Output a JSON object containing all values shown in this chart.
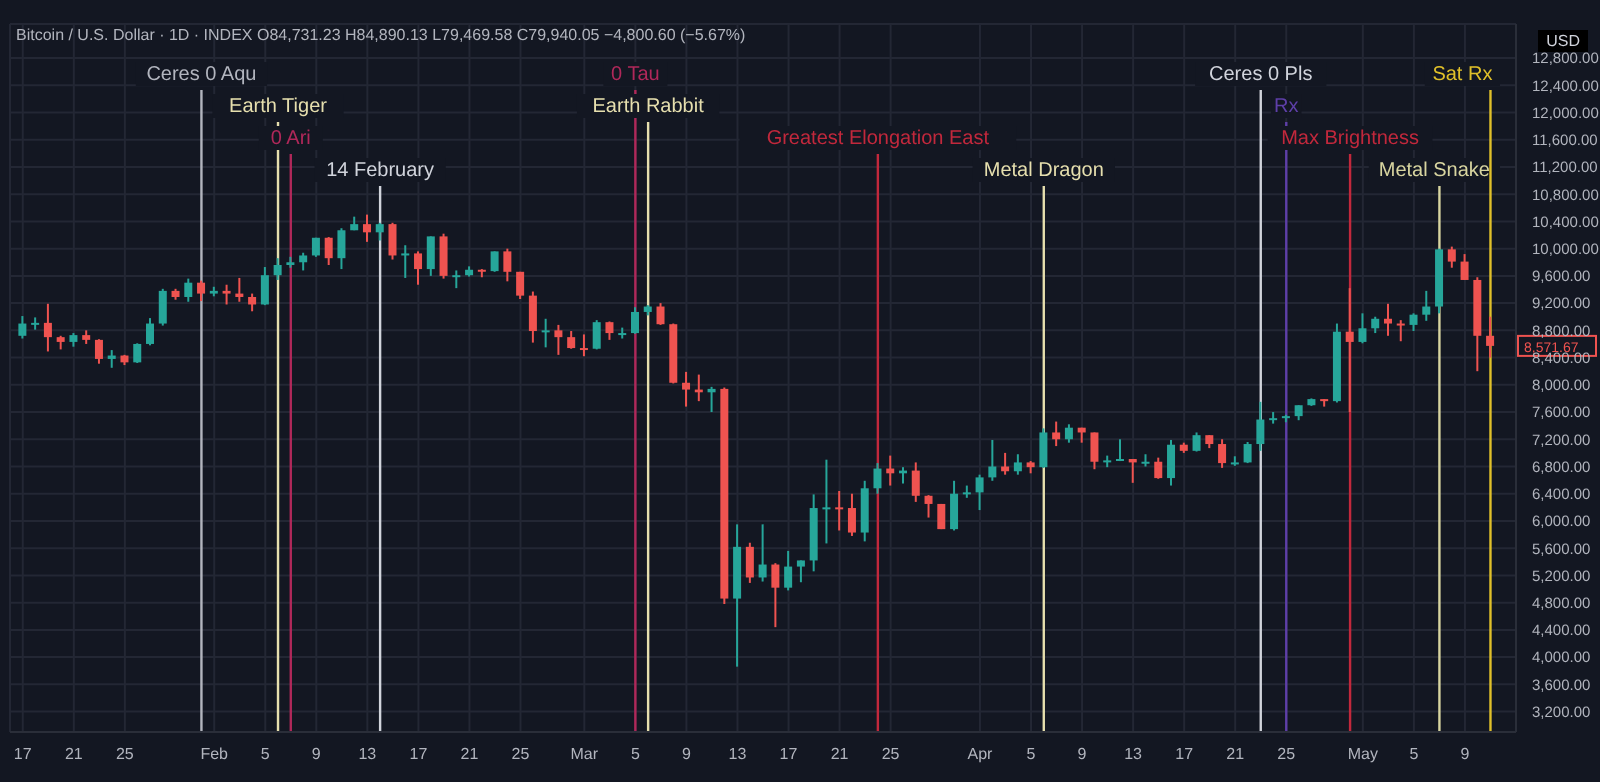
{
  "chart_data": {
    "type": "candlestick",
    "subtitle": "Bitcoin / U.S. Dollar · 1D · INDEX  O84,731.23 H84,890.13 L79,469.58 C79,940.05 −4,800.60 (−5.67%)",
    "ylabel": "USD",
    "x": [
      "--01-17",
      "--01-18",
      "--01-19",
      "--01-20",
      "--01-21",
      "--01-22",
      "--01-23",
      "--01-24",
      "--01-25",
      "--01-26",
      "--01-27",
      "--01-28",
      "--01-29",
      "--01-30",
      "--01-31",
      "--02-01",
      "--02-02",
      "--02-03",
      "--02-04",
      "--02-05",
      "--02-06",
      "--02-07",
      "--02-08",
      "--02-09",
      "--02-10",
      "--02-11",
      "--02-12",
      "--02-13",
      "--02-14",
      "--02-15",
      "--02-16",
      "--02-17",
      "--02-18",
      "--02-19",
      "--02-20",
      "--02-21",
      "--02-22",
      "--02-23",
      "--02-24",
      "--02-25",
      "--02-26",
      "--02-27",
      "--02-28",
      "--02-29",
      "--03-01",
      "--03-02",
      "--03-03",
      "--03-04",
      "--03-05",
      "--03-06",
      "--03-07",
      "--03-08",
      "--03-09",
      "--03-10",
      "--03-11",
      "--03-12",
      "--03-13",
      "--03-14",
      "--03-15",
      "--03-16",
      "--03-17",
      "--03-18",
      "--03-19",
      "--03-20",
      "--03-21",
      "--03-22",
      "--03-23",
      "--03-24",
      "--03-25",
      "--03-26",
      "--03-27",
      "--03-28",
      "--03-29",
      "--03-30",
      "--03-31",
      "--04-01",
      "--04-02",
      "--04-03",
      "--04-04",
      "--04-05",
      "--04-06",
      "--04-07",
      "--04-08",
      "--04-09",
      "--04-10",
      "--04-11",
      "--04-12",
      "--04-13",
      "--04-14",
      "--04-15",
      "--04-16",
      "--04-17",
      "--04-18",
      "--04-19",
      "--04-20",
      "--04-21",
      "--04-22",
      "--04-23",
      "--04-24",
      "--04-25",
      "--04-26",
      "--04-27",
      "--04-28",
      "--04-29",
      "--04-30",
      "--05-01",
      "--05-02",
      "--05-03",
      "--05-04",
      "--05-05",
      "--05-06",
      "--05-07",
      "--05-08",
      "--05-09",
      "--05-10",
      "--05-11"
    ],
    "ohlc": [
      [
        8720,
        9010,
        8680,
        8900
      ],
      [
        8900,
        8990,
        8810,
        8910
      ],
      [
        8910,
        9190,
        8490,
        8700
      ],
      [
        8700,
        8720,
        8520,
        8630
      ],
      [
        8630,
        8760,
        8560,
        8730
      ],
      [
        8730,
        8800,
        8600,
        8660
      ],
      [
        8660,
        8670,
        8310,
        8380
      ],
      [
        8380,
        8510,
        8250,
        8430
      ],
      [
        8430,
        8440,
        8290,
        8330
      ],
      [
        8330,
        8610,
        8320,
        8600
      ],
      [
        8600,
        8980,
        8580,
        8900
      ],
      [
        8900,
        9410,
        8870,
        9380
      ],
      [
        9380,
        9410,
        9250,
        9290
      ],
      [
        9290,
        9560,
        9220,
        9500
      ],
      [
        9500,
        9530,
        9230,
        9340
      ],
      [
        9340,
        9440,
        9300,
        9380
      ],
      [
        9380,
        9470,
        9180,
        9340
      ],
      [
        9340,
        9570,
        9220,
        9290
      ],
      [
        9290,
        9340,
        9080,
        9180
      ],
      [
        9180,
        9730,
        9170,
        9610
      ],
      [
        9610,
        9860,
        9540,
        9760
      ],
      [
        9760,
        9880,
        9720,
        9800
      ],
      [
        9800,
        9940,
        9680,
        9900
      ],
      [
        9900,
        10160,
        9880,
        10160
      ],
      [
        10160,
        10170,
        9760,
        9860
      ],
      [
        9860,
        10300,
        9700,
        10270
      ],
      [
        10270,
        10470,
        10270,
        10360
      ],
      [
        10360,
        10500,
        10100,
        10240
      ],
      [
        10240,
        10380,
        10120,
        10360
      ],
      [
        10360,
        10380,
        9840,
        9900
      ],
      [
        9900,
        10050,
        9570,
        9930
      ],
      [
        9930,
        9960,
        9470,
        9700
      ],
      [
        9700,
        10180,
        9600,
        10180
      ],
      [
        10180,
        10220,
        9560,
        9600
      ],
      [
        9600,
        9680,
        9420,
        9610
      ],
      [
        9610,
        9740,
        9590,
        9690
      ],
      [
        9690,
        9700,
        9580,
        9670
      ],
      [
        9670,
        9960,
        9660,
        9960
      ],
      [
        9960,
        10000,
        9520,
        9660
      ],
      [
        9660,
        9660,
        9260,
        9310
      ],
      [
        9310,
        9370,
        8620,
        8790
      ],
      [
        8790,
        8970,
        8550,
        8800
      ],
      [
        8800,
        8880,
        8440,
        8700
      ],
      [
        8700,
        8790,
        8530,
        8540
      ],
      [
        8540,
        8740,
        8420,
        8530
      ],
      [
        8530,
        8950,
        8520,
        8920
      ],
      [
        8920,
        8930,
        8660,
        8760
      ],
      [
        8760,
        8840,
        8680,
        8760
      ],
      [
        8760,
        9140,
        8750,
        9070
      ],
      [
        9070,
        9170,
        9020,
        9150
      ],
      [
        9150,
        9200,
        8880,
        8890
      ],
      [
        8890,
        8900,
        8020,
        8030
      ],
      [
        8030,
        8190,
        7680,
        7930
      ],
      [
        7930,
        8150,
        7760,
        7890
      ],
      [
        7890,
        7970,
        7600,
        7940
      ],
      [
        7940,
        7960,
        4780,
        4860
      ],
      [
        4860,
        5950,
        3860,
        5620
      ],
      [
        5620,
        5680,
        5090,
        5170
      ],
      [
        5170,
        5950,
        5110,
        5360
      ],
      [
        5360,
        5380,
        4440,
        5020
      ],
      [
        5020,
        5560,
        4980,
        5330
      ],
      [
        5330,
        5420,
        5100,
        5420
      ],
      [
        5420,
        6390,
        5260,
        6190
      ],
      [
        6190,
        6900,
        5670,
        6200
      ],
      [
        6200,
        6440,
        5860,
        6190
      ],
      [
        6190,
        6400,
        5780,
        5830
      ],
      [
        5830,
        6590,
        5700,
        6480
      ],
      [
        6480,
        6850,
        6400,
        6770
      ],
      [
        6770,
        6960,
        6520,
        6700
      ],
      [
        6700,
        6790,
        6550,
        6740
      ],
      [
        6740,
        6860,
        6280,
        6370
      ],
      [
        6370,
        6380,
        6050,
        6250
      ],
      [
        6250,
        6250,
        5880,
        5880
      ],
      [
        5880,
        6590,
        5860,
        6400
      ],
      [
        6400,
        6520,
        6340,
        6420
      ],
      [
        6420,
        6680,
        6160,
        6640
      ],
      [
        6640,
        7190,
        6590,
        6800
      ],
      [
        6800,
        7000,
        6680,
        6730
      ],
      [
        6730,
        6980,
        6680,
        6860
      ],
      [
        6860,
        6880,
        6700,
        6790
      ],
      [
        6790,
        7360,
        6780,
        7300
      ],
      [
        7300,
        7460,
        7100,
        7200
      ],
      [
        7200,
        7420,
        7150,
        7370
      ],
      [
        7370,
        7370,
        7150,
        7300
      ],
      [
        7300,
        7300,
        6760,
        6870
      ],
      [
        6870,
        6960,
        6790,
        6890
      ],
      [
        6890,
        7200,
        6880,
        6910
      ],
      [
        6910,
        6910,
        6560,
        6860
      ],
      [
        6860,
        6980,
        6800,
        6870
      ],
      [
        6870,
        6930,
        6620,
        6630
      ],
      [
        6630,
        7190,
        6520,
        7120
      ],
      [
        7120,
        7150,
        7000,
        7030
      ],
      [
        7030,
        7300,
        7020,
        7260
      ],
      [
        7260,
        7260,
        7070,
        7130
      ],
      [
        7130,
        7200,
        6780,
        6850
      ],
      [
        6850,
        6950,
        6810,
        6860
      ],
      [
        6860,
        7160,
        6850,
        7130
      ],
      [
        7130,
        7750,
        7030,
        7490
      ],
      [
        7490,
        7600,
        7430,
        7510
      ],
      [
        7510,
        7560,
        7450,
        7540
      ],
      [
        7540,
        7700,
        7480,
        7700
      ],
      [
        7700,
        7800,
        7690,
        7790
      ],
      [
        7790,
        7790,
        7680,
        7760
      ],
      [
        7760,
        8900,
        7740,
        8780
      ],
      [
        8780,
        9420,
        7600,
        8630
      ],
      [
        8630,
        9050,
        8610,
        8830
      ],
      [
        8830,
        9000,
        8760,
        8970
      ],
      [
        8970,
        9190,
        8720,
        8900
      ],
      [
        8900,
        8950,
        8640,
        8880
      ],
      [
        8880,
        9050,
        8790,
        9030
      ],
      [
        9030,
        9380,
        8940,
        9150
      ],
      [
        9150,
        10000,
        9050,
        9990
      ],
      [
        9990,
        10030,
        9720,
        9810
      ],
      [
        9810,
        9920,
        9540,
        9540
      ],
      [
        9540,
        9580,
        8200,
        8720
      ],
      [
        8720,
        9000,
        8400,
        8571.67
      ]
    ],
    "xlim": [
      "--01-16",
      "--05-13"
    ],
    "xticks": [
      {
        "value": "--01-17",
        "label": "17"
      },
      {
        "value": "--01-21",
        "label": "21"
      },
      {
        "value": "--01-25",
        "label": "25"
      },
      {
        "value": "--02-01",
        "label": "Feb"
      },
      {
        "value": "--02-05",
        "label": "5"
      },
      {
        "value": "--02-09",
        "label": "9"
      },
      {
        "value": "--02-13",
        "label": "13"
      },
      {
        "value": "--02-17",
        "label": "17"
      },
      {
        "value": "--02-21",
        "label": "21"
      },
      {
        "value": "--02-25",
        "label": "25"
      },
      {
        "value": "--03-01",
        "label": "Mar"
      },
      {
        "value": "--03-05",
        "label": "5"
      },
      {
        "value": "--03-09",
        "label": "9"
      },
      {
        "value": "--03-13",
        "label": "13"
      },
      {
        "value": "--03-17",
        "label": "17"
      },
      {
        "value": "--03-21",
        "label": "21"
      },
      {
        "value": "--03-25",
        "label": "25"
      },
      {
        "value": "--04-01",
        "label": "Apr"
      },
      {
        "value": "--04-05",
        "label": "5"
      },
      {
        "value": "--04-09",
        "label": "9"
      },
      {
        "value": "--04-13",
        "label": "13"
      },
      {
        "value": "--04-17",
        "label": "17"
      },
      {
        "value": "--04-21",
        "label": "21"
      },
      {
        "value": "--04-25",
        "label": "25"
      },
      {
        "value": "--05-01",
        "label": "May"
      },
      {
        "value": "--05-05",
        "label": "5"
      },
      {
        "value": "--05-09",
        "label": "9"
      }
    ],
    "ylim": [
      2900,
      13300
    ],
    "yticks": [
      {
        "value": 3200,
        "label": "3,200.00"
      },
      {
        "value": 3600,
        "label": "3,600.00"
      },
      {
        "value": 4000,
        "label": "4,000.00"
      },
      {
        "value": 4400,
        "label": "4,400.00"
      },
      {
        "value": 4800,
        "label": "4,800.00"
      },
      {
        "value": 5200,
        "label": "5,200.00"
      },
      {
        "value": 5600,
        "label": "5,600.00"
      },
      {
        "value": 6000,
        "label": "6,000.00"
      },
      {
        "value": 6400,
        "label": "6,400.00"
      },
      {
        "value": 6800,
        "label": "6,800.00"
      },
      {
        "value": 7200,
        "label": "7,200.00"
      },
      {
        "value": 7600,
        "label": "7,600.00"
      },
      {
        "value": 8000,
        "label": "8,000.00"
      },
      {
        "value": 8400,
        "label": "8,400.00"
      },
      {
        "value": 8800,
        "label": "8,800.00"
      },
      {
        "value": 9200,
        "label": "9,200.00"
      },
      {
        "value": 9600,
        "label": "9,600.00"
      },
      {
        "value": 10000,
        "label": "10,000.00"
      },
      {
        "value": 10400,
        "label": "10,400.00"
      },
      {
        "value": 10800,
        "label": "10,800.00"
      },
      {
        "value": 11200,
        "label": "11,200.00"
      },
      {
        "value": 11600,
        "label": "11,600.00"
      },
      {
        "value": 12000,
        "label": "12,000.00"
      },
      {
        "value": 12400,
        "label": "12,400.00"
      },
      {
        "value": 12800,
        "label": "12,800.00"
      }
    ],
    "grid": true,
    "ref_lines": [
      {
        "axis": "x",
        "value": "--01-31",
        "label": "Ceres 0 Aqu",
        "color": "#b2b5be"
      },
      {
        "axis": "x",
        "value": "--02-06",
        "label": "Earth Tiger",
        "color": "#e6dfae"
      },
      {
        "axis": "x",
        "value": "--02-07",
        "label": "0 Ari",
        "color": "#b0285a"
      },
      {
        "axis": "x",
        "value": "--02-14",
        "label": "14 February",
        "color": "#d1d4dc"
      },
      {
        "axis": "x",
        "value": "--03-05",
        "label": "0 Tau",
        "color": "#b0285a"
      },
      {
        "axis": "x",
        "value": "--03-06",
        "label": "Earth Rabbit",
        "color": "#e6dfae"
      },
      {
        "axis": "x",
        "value": "--03-24",
        "label": "Greatest Elongation East",
        "color": "#c2283c"
      },
      {
        "axis": "x",
        "value": "--04-06",
        "label": "Metal Dragon",
        "color": "#e6dfae"
      },
      {
        "axis": "x",
        "value": "--04-23",
        "label": "Ceres 0 Pls",
        "color": "#d1d4dc"
      },
      {
        "axis": "x",
        "value": "--04-25",
        "label": "Rx",
        "color": "#5e3fa8"
      },
      {
        "axis": "x",
        "value": "--04-30",
        "label": "Max Brightness",
        "color": "#c2283c"
      },
      {
        "axis": "x",
        "value": "--05-07",
        "label": "Metal Snake",
        "color": "#d8d5a0"
      },
      {
        "axis": "x",
        "value": "--05-11",
        "label": "Sat Rx",
        "color": "#e0c02a"
      }
    ],
    "annotations": [
      {
        "text": "8,571.67",
        "x": "--05-11",
        "y": 8571.67
      }
    ]
  }
}
